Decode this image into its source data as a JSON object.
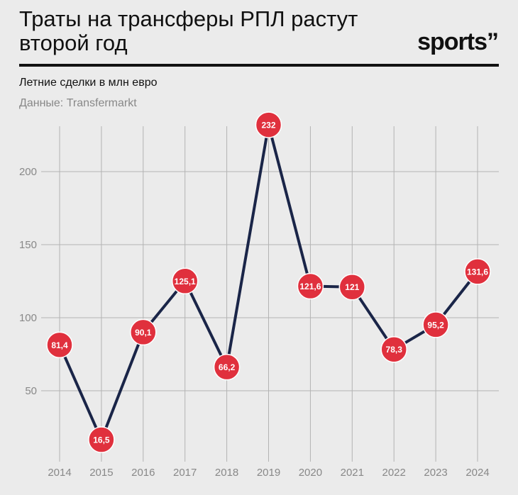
{
  "header": {
    "title": "Траты на трансферы РПЛ растут второй год",
    "logo": "sports”"
  },
  "chart_data": {
    "type": "line",
    "title": "Траты на трансферы РПЛ растут второй год",
    "subtitle": "Летние сделки в млн евро",
    "source": "Данные: Transfermarkt",
    "xlabel": "",
    "ylabel": "",
    "categories": [
      "2014",
      "2015",
      "2016",
      "2017",
      "2018",
      "2019",
      "2020",
      "2021",
      "2022",
      "2023",
      "2024"
    ],
    "series": [
      {
        "values": [
          81.4,
          16.5,
          90.1,
          125.1,
          66.2,
          232,
          121.6,
          121,
          78.3,
          95.2,
          131.6
        ],
        "labels": [
          "81,4",
          "16,5",
          "90,1",
          "125,1",
          "66,2",
          "232",
          "121,6",
          "121",
          "78,3",
          "95,2",
          "131,6"
        ]
      }
    ],
    "yticks": [
      50,
      100,
      150,
      200
    ],
    "ylim": [
      0,
      232
    ],
    "grid": true,
    "legend": "none",
    "colors": {
      "line": "#1a2548",
      "marker": "#e0303d",
      "marker_stroke": "#ffffff",
      "grid": "#b3b3b3"
    }
  }
}
